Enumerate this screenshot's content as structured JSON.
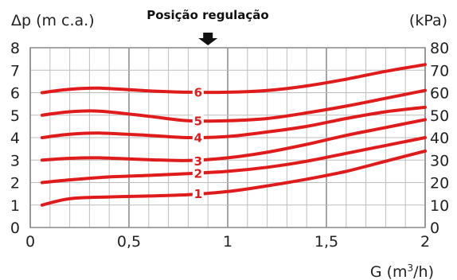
{
  "chart_data": {
    "type": "line",
    "title": "Posição regulação",
    "ylabel_left": "Δp (m c.a.)",
    "ylabel_right": "(kPa)",
    "xlabel": "G (m3/h)",
    "xlabel_base": "G (m",
    "xlabel_sup": "3",
    "xlabel_end": "/h)",
    "xlim": [
      0,
      2
    ],
    "ylim": [
      0,
      8
    ],
    "ylim_right": [
      0,
      80
    ],
    "grid": true,
    "line_color": "#e01b1b",
    "marker_color": "#111111",
    "marker_x": 0.9,
    "x_ticks": [
      {
        "value": 0,
        "label": "0"
      },
      {
        "value": 0.5,
        "label": "0,5"
      },
      {
        "value": 1,
        "label": "1"
      },
      {
        "value": 1.5,
        "label": "1,5"
      },
      {
        "value": 2,
        "label": "2"
      }
    ],
    "y_ticks_left": [
      "0",
      "1",
      "2",
      "3",
      "4",
      "5",
      "6",
      "7",
      "8"
    ],
    "y_ticks_right": [
      "0",
      "10",
      "20",
      "30",
      "40",
      "50",
      "60",
      "70",
      "80"
    ],
    "series": [
      {
        "name": "1",
        "label_x": 0.85,
        "label_y": 1.5,
        "x": [
          0.06,
          0.2,
          0.4,
          0.6,
          0.8,
          1.0,
          1.2,
          1.4,
          1.6,
          1.8,
          2.0
        ],
        "y": [
          1.0,
          1.28,
          1.36,
          1.4,
          1.46,
          1.6,
          1.85,
          2.15,
          2.5,
          2.95,
          3.4
        ]
      },
      {
        "name": "2",
        "label_x": 0.85,
        "label_y": 2.4,
        "x": [
          0.06,
          0.2,
          0.4,
          0.6,
          0.8,
          1.0,
          1.2,
          1.4,
          1.6,
          1.8,
          2.0
        ],
        "y": [
          2.0,
          2.12,
          2.25,
          2.32,
          2.4,
          2.5,
          2.68,
          2.95,
          3.3,
          3.65,
          4.0
        ]
      },
      {
        "name": "3",
        "label_x": 0.85,
        "label_y": 2.95,
        "x": [
          0.06,
          0.2,
          0.35,
          0.6,
          0.8,
          1.0,
          1.2,
          1.4,
          1.6,
          1.8,
          2.0
        ],
        "y": [
          3.0,
          3.08,
          3.1,
          3.02,
          2.98,
          3.1,
          3.35,
          3.7,
          4.1,
          4.45,
          4.8
        ]
      },
      {
        "name": "4",
        "label_x": 0.85,
        "label_y": 4.0,
        "x": [
          0.06,
          0.2,
          0.35,
          0.6,
          0.8,
          1.0,
          1.2,
          1.4,
          1.6,
          1.8,
          2.0
        ],
        "y": [
          4.0,
          4.15,
          4.2,
          4.1,
          4.0,
          4.05,
          4.25,
          4.5,
          4.85,
          5.15,
          5.35
        ]
      },
      {
        "name": "5",
        "label_x": 0.85,
        "label_y": 4.75,
        "x": [
          0.06,
          0.2,
          0.35,
          0.6,
          0.8,
          1.0,
          1.2,
          1.4,
          1.6,
          1.8,
          2.0
        ],
        "y": [
          5.0,
          5.15,
          5.18,
          4.95,
          4.75,
          4.75,
          4.85,
          5.1,
          5.4,
          5.75,
          6.1
        ]
      },
      {
        "name": "6",
        "label_x": 0.85,
        "label_y": 6.02,
        "x": [
          0.06,
          0.2,
          0.35,
          0.6,
          0.8,
          1.0,
          1.2,
          1.4,
          1.6,
          1.8,
          2.0
        ],
        "y": [
          6.0,
          6.15,
          6.2,
          6.08,
          6.02,
          6.02,
          6.1,
          6.3,
          6.6,
          6.95,
          7.25
        ]
      }
    ]
  }
}
